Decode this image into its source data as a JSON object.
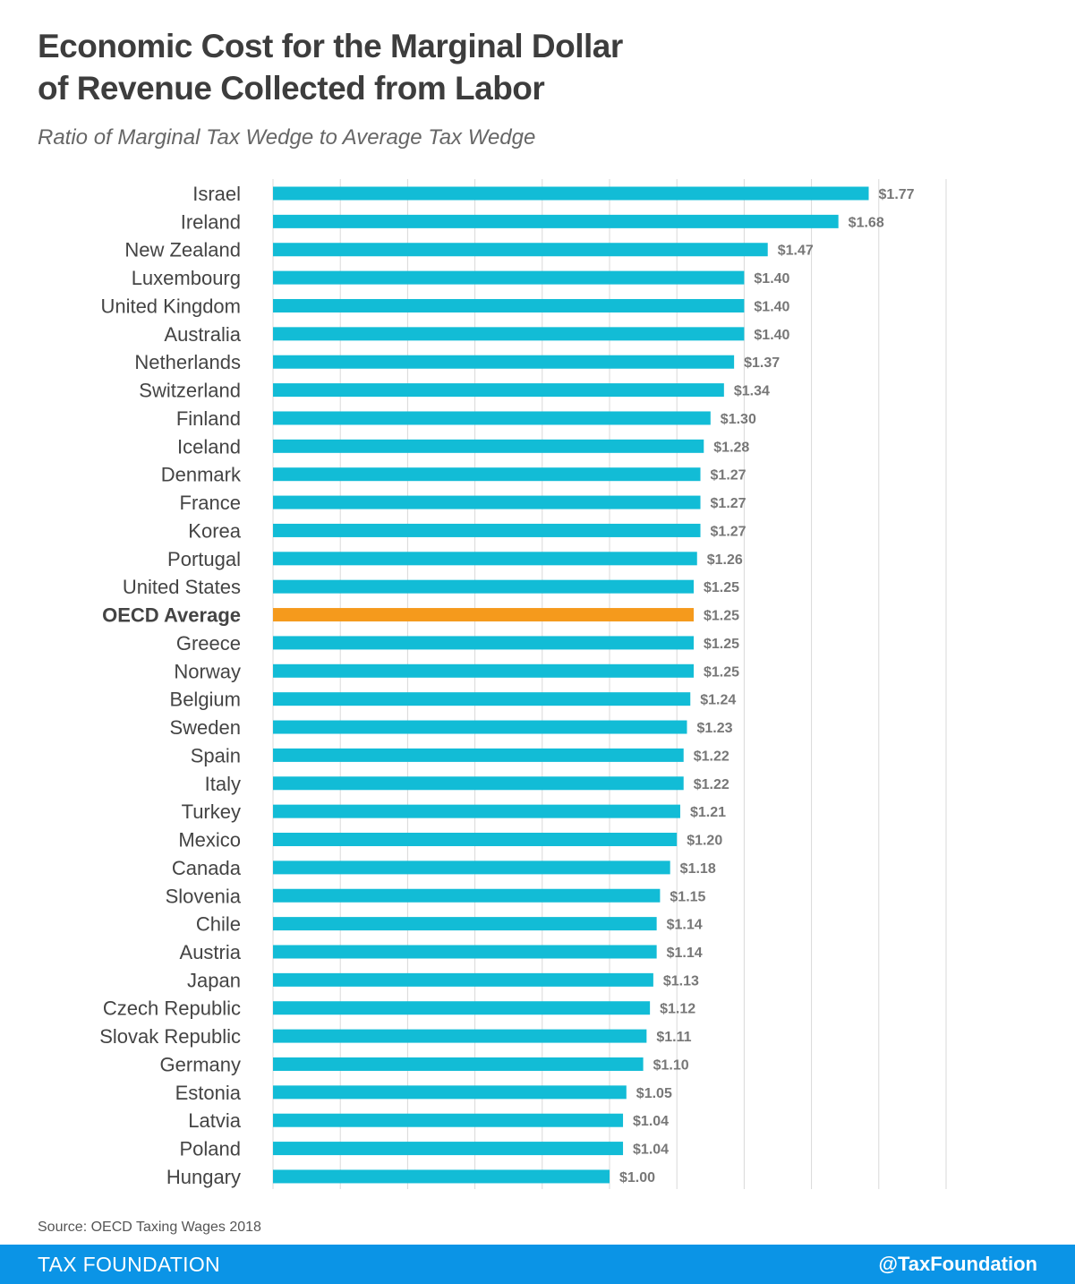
{
  "title_line1": "Economic Cost for the Marginal Dollar",
  "title_line2": "of Revenue Collected from Labor",
  "subtitle": "Ratio of Marginal Tax Wedge to Average Tax Wedge",
  "source": "Source: OECD Taxing Wages 2018",
  "footer": {
    "brand": "TAX FOUNDATION",
    "handle": "@TaxFoundation"
  },
  "colors": {
    "bar": "#12bcd6",
    "highlight": "#f59a1c",
    "label": "#777777",
    "category": "#444444",
    "grid": "#d9d9d9"
  },
  "chart_data": {
    "type": "bar",
    "orientation": "horizontal",
    "xlim": [
      0,
      2.0
    ],
    "grid": true,
    "value_prefix": "$",
    "highlight_category": "OECD Average",
    "categories": [
      "Israel",
      "Ireland",
      "New Zealand",
      "Luxembourg",
      "United Kingdom",
      "Australia",
      "Netherlands",
      "Switzerland",
      "Finland",
      "Iceland ",
      "Denmark",
      "France",
      "Korea",
      "Portugal",
      "United States",
      "OECD Average",
      "Greece",
      "Norway",
      "Belgium",
      "Sweden",
      "Spain",
      "Italy",
      "Turkey",
      "Mexico",
      "Canada",
      "Slovenia",
      "Chile",
      "Austria",
      "Japan",
      "Czech Republic",
      "Slovak Republic",
      "Germany",
      "Estonia",
      "Latvia",
      "Poland",
      "Hungary"
    ],
    "values": [
      1.77,
      1.68,
      1.47,
      1.4,
      1.4,
      1.4,
      1.37,
      1.34,
      1.3,
      1.28,
      1.27,
      1.27,
      1.27,
      1.26,
      1.25,
      1.25,
      1.25,
      1.25,
      1.24,
      1.23,
      1.22,
      1.22,
      1.21,
      1.2,
      1.18,
      1.15,
      1.14,
      1.14,
      1.13,
      1.12,
      1.11,
      1.1,
      1.05,
      1.04,
      1.04,
      1.0
    ],
    "labels": [
      "$1.77",
      "$1.68",
      "$1.47",
      "$1.40",
      "$1.40",
      "$1.40",
      "$1.37",
      "$1.34",
      "$1.30",
      "$1.28",
      "$1.27",
      "$1.27",
      "$1.27",
      "$1.26",
      "$1.25",
      "$1.25",
      "$1.25",
      "$1.25",
      "$1.24",
      "$1.23",
      "$1.22",
      "$1.22",
      "$1.21",
      "$1.20",
      "$1.18",
      "$1.15",
      "$1.14",
      "$1.14",
      "$1.13",
      "$1.12",
      "$1.11",
      "$1.10",
      "$1.05",
      "$1.04",
      "$1.04",
      "$1.00"
    ]
  }
}
